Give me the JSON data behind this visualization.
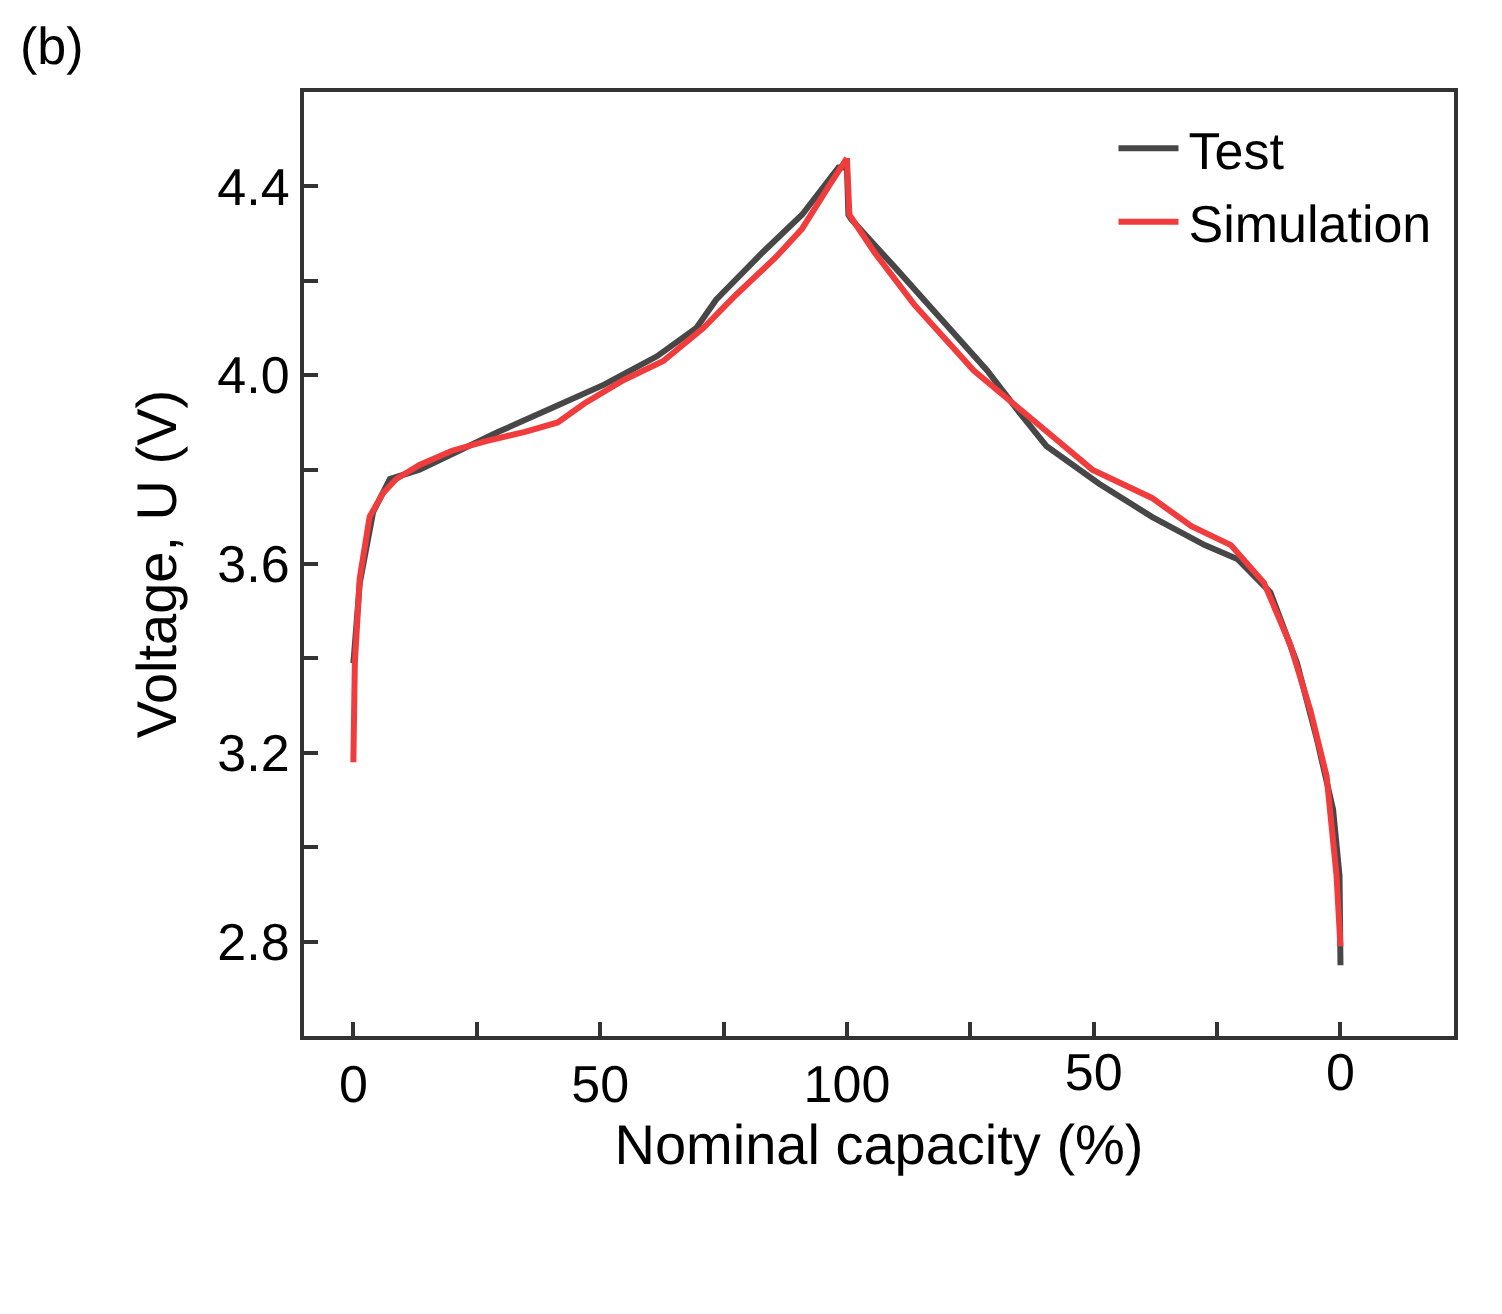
{
  "chart_data": {
    "type": "line",
    "xlabel": "Nominal capacity (%)",
    "ylabel": "Voltage, U (V)",
    "annotations": [
      "(b)"
    ],
    "xlim": [
      -10,
      223
    ],
    "xticks": [
      0,
      {
        "value": 25,
        "label": null
      },
      50,
      {
        "value": 75,
        "label": null
      },
      100
    ],
    "x2lim": [
      210,
      -23
    ],
    "x2ticks": [
      {
        "value": 75,
        "label": null
      },
      50,
      {
        "value": 25,
        "label": null
      },
      0
    ],
    "ylim": [
      2.6,
      4.6
    ],
    "yticks": [
      {
        "value": 2.8,
        "label": "2.8"
      },
      {
        "value": 3.0,
        "label": null
      },
      {
        "value": 3.2,
        "label": "3.2"
      },
      {
        "value": 3.4,
        "label": null
      },
      {
        "value": 3.6,
        "label": "3.6"
      },
      {
        "value": 3.8,
        "label": null
      },
      {
        "value": 4.0,
        "label": "4.0"
      },
      {
        "value": 4.2,
        "label": null
      },
      {
        "value": 4.4,
        "label": "4.4"
      }
    ],
    "grid": false,
    "legend": "top right",
    "marker": "none",
    "line_style": "solid",
    "series": [
      {
        "name": "Test",
        "color": "#474747",
        "x": [
          0,
          1.3,
          4,
          7.4,
          13.4,
          21.4,
          29.4,
          40.1,
          50.8,
          61.5,
          69.5,
          73.5,
          82.9,
          90.9,
          98.3,
          100
        ],
        "values": [
          3.39,
          3.56,
          3.71,
          3.78,
          3.8,
          3.84,
          3.88,
          3.93,
          3.98,
          4.04,
          4.1,
          4.16,
          4.26,
          4.34,
          4.44,
          4.44
        ]
      },
      {
        "name": "Simulation",
        "color": "#f03c3c",
        "x": [
          0,
          0.3,
          1.3,
          3.3,
          6,
          8.7,
          13.4,
          20,
          26.7,
          34.8,
          41.4,
          46.8,
          54.8,
          62.8,
          70.9,
          77.5,
          85.6,
          90.9,
          96.3,
          100
        ],
        "values": [
          3.18,
          3.39,
          3.57,
          3.7,
          3.75,
          3.78,
          3.81,
          3.84,
          3.86,
          3.88,
          3.9,
          3.94,
          3.99,
          4.03,
          4.1,
          4.17,
          4.25,
          4.31,
          4.4,
          4.46
        ]
      },
      {
        "color": "#474747",
        "axis": "x2",
        "x": [
          100,
          99.7,
          99.1,
          90.4,
          81,
          71.6,
          65,
          59.6,
          48.9,
          38.2,
          27.5,
          20.8,
          14.2,
          8.8,
          4.8,
          1.5,
          0.2,
          0
        ],
        "values": [
          4.44,
          4.34,
          4.33,
          4.23,
          4.12,
          4.01,
          3.92,
          3.85,
          3.77,
          3.7,
          3.64,
          3.61,
          3.54,
          3.39,
          3.23,
          3.08,
          2.94,
          2.75
        ]
      },
      {
        "color": "#f03c3c",
        "axis": "x2",
        "x": [
          100,
          99.5,
          94.4,
          86.4,
          74.3,
          66.3,
          58.3,
          50.3,
          38.2,
          30.2,
          22.2,
          15.5,
          10.2,
          6.1,
          2.8,
          0.8,
          0
        ],
        "values": [
          4.46,
          4.34,
          4.26,
          4.15,
          4.01,
          3.94,
          3.87,
          3.8,
          3.74,
          3.68,
          3.64,
          3.56,
          3.43,
          3.29,
          3.15,
          2.94,
          2.79
        ]
      }
    ]
  }
}
